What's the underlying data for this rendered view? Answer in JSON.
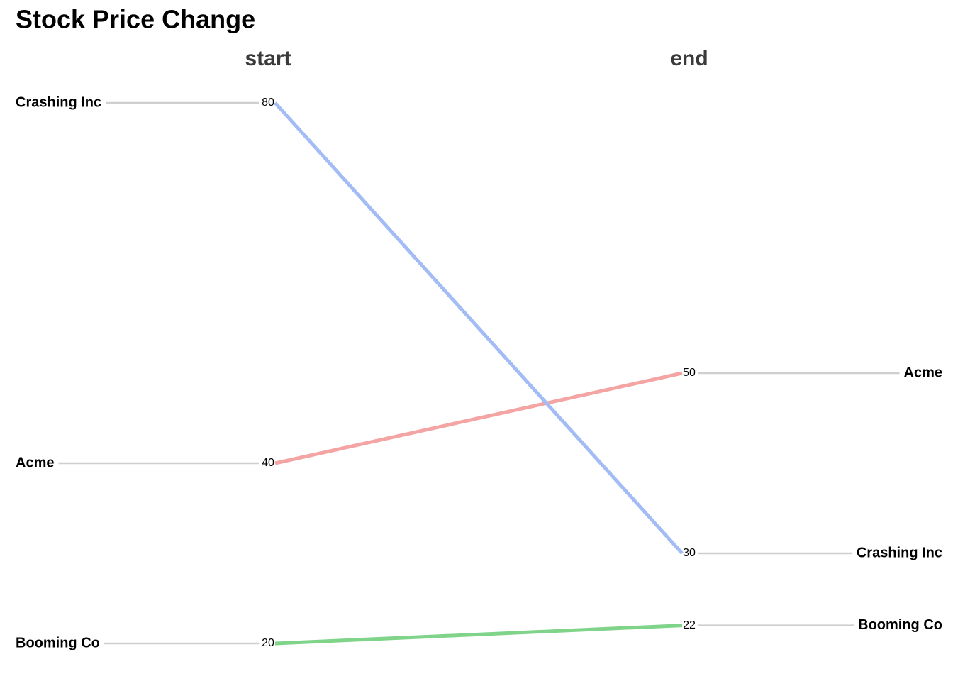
{
  "chart_data": {
    "type": "slope",
    "title": "Stock Price Change",
    "categories": [
      "start",
      "end"
    ],
    "series": [
      {
        "name": "Acme",
        "color": "#f4a4a2",
        "values": [
          40,
          50
        ]
      },
      {
        "name": "Crashing Inc",
        "color": "#a3bcf6",
        "values": [
          80,
          30
        ]
      },
      {
        "name": "Booming Co",
        "color": "#7fd48a",
        "values": [
          20,
          22
        ]
      }
    ]
  }
}
